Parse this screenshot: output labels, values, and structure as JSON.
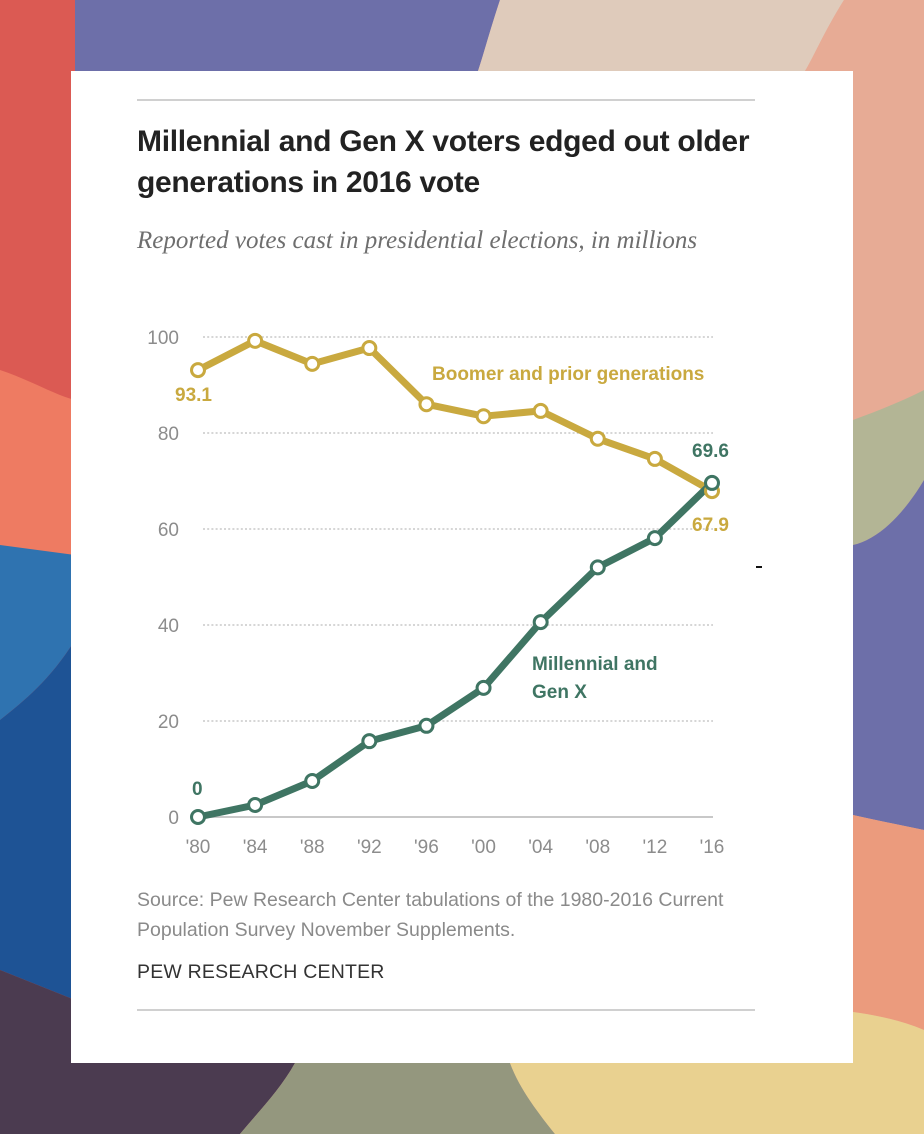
{
  "page": {
    "title": "Millennial and Gen X voters edged out older generations in 2016 vote",
    "subtitle": "Reported votes cast in presidential elections, in millions",
    "source": "Source: Pew Research Center tabulations of the 1980-2016 Current Population Survey November Supplements.",
    "brand": "PEW RESEARCH CENTER"
  },
  "colors": {
    "boomer": "#c9a93f",
    "millennial": "#3f7563",
    "gridline": "#bdbdbd",
    "axis": "#c8c8c8"
  },
  "chart_data": {
    "type": "line",
    "title": "Millennial and Gen X voters edged out older generations in 2016 vote",
    "subtitle": "Reported votes cast in presidential elections, in millions",
    "xlabel": "",
    "ylabel": "",
    "x": [
      "'80",
      "'84",
      "'88",
      "'92",
      "'96",
      "'00",
      "'04",
      "'08",
      "'12",
      "'16"
    ],
    "ylim": [
      0,
      100
    ],
    "yticks": [
      0,
      20,
      40,
      60,
      80,
      100
    ],
    "grid": true,
    "legend": "inline labels",
    "series": [
      {
        "name": "Boomer and prior generations",
        "key": "boomer",
        "values": [
          93.1,
          99.2,
          94.4,
          97.7,
          86.0,
          83.5,
          84.6,
          78.8,
          74.6,
          67.9
        ],
        "start_label": "93.1",
        "end_label": "67.9"
      },
      {
        "name": "Millennial and Gen X",
        "name_lines": [
          "Millennial and",
          "Gen X"
        ],
        "key": "millennial",
        "values": [
          0,
          2.5,
          7.5,
          15.8,
          19.0,
          26.9,
          40.6,
          52.0,
          58.1,
          69.6
        ],
        "start_label": "0",
        "end_label": "69.6"
      }
    ],
    "annotations": [
      "93.1",
      "67.9",
      "0",
      "69.6"
    ]
  }
}
